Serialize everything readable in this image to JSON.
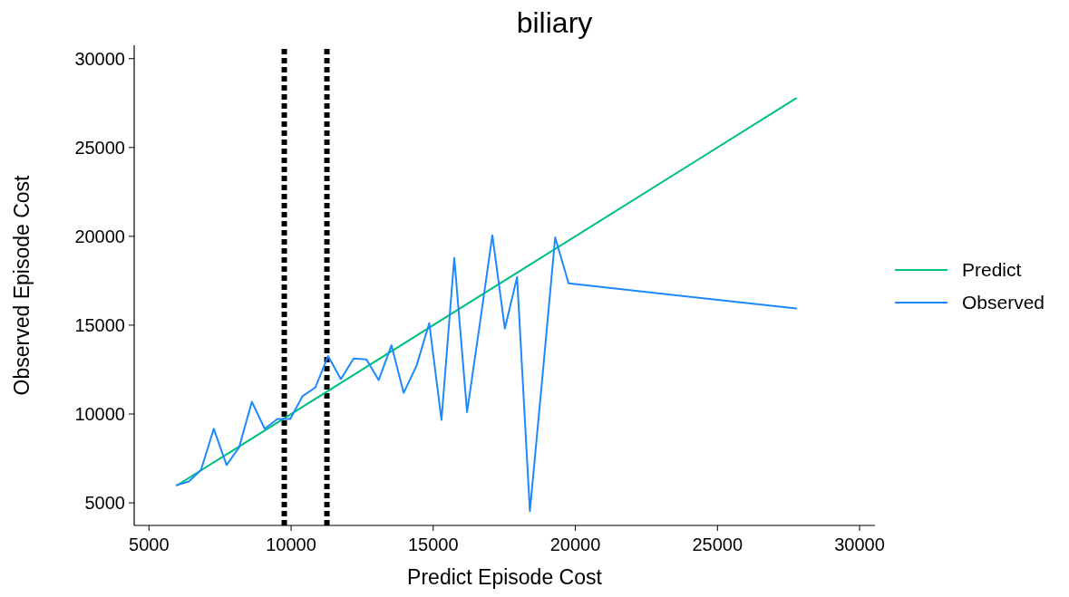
{
  "chart_data": {
    "type": "line",
    "title": "biliary",
    "xlabel": "Predict Episode Cost",
    "ylabel": "Observed Episode Cost",
    "xlim": [
      4480,
      30540
    ],
    "ylim": [
      3730,
      30750
    ],
    "xticks": [
      5000,
      10000,
      15000,
      20000,
      25000,
      30000
    ],
    "yticks": [
      5000,
      10000,
      15000,
      20000,
      25000,
      30000
    ],
    "grid": false,
    "legend": "right",
    "marker": "none",
    "line_style": "solid",
    "ref_lines": [
      {
        "axis": "x",
        "value": 9760,
        "color": "#000000",
        "line_style": "dotted"
      },
      {
        "axis": "x",
        "value": 11260,
        "color": "#000000",
        "line_style": "dotted"
      }
    ],
    "series": [
      {
        "name": "Predict",
        "color": "#00c07f",
        "x": [
          6000,
          27770
        ],
        "values": [
          6000,
          27770
        ]
      },
      {
        "name": "Observed",
        "color": "#1e88ff",
        "x": [
          5970,
          6400,
          6830,
          7280,
          7730,
          8170,
          8620,
          9070,
          9520,
          9970,
          10400,
          10850,
          11300,
          11750,
          12200,
          12650,
          13080,
          13530,
          13960,
          14410,
          14860,
          15290,
          15740,
          16190,
          16640,
          17080,
          17520,
          17950,
          18400,
          18850,
          19290,
          19760,
          27770
        ],
        "values": [
          6000,
          6200,
          6850,
          9170,
          7130,
          8120,
          10690,
          9170,
          9720,
          9720,
          11000,
          11490,
          13260,
          11960,
          13120,
          13070,
          11910,
          13870,
          11190,
          12710,
          15110,
          9670,
          18780,
          10110,
          15080,
          20060,
          14810,
          17710,
          4530,
          12240,
          19940,
          17350,
          15940
        ]
      }
    ]
  }
}
